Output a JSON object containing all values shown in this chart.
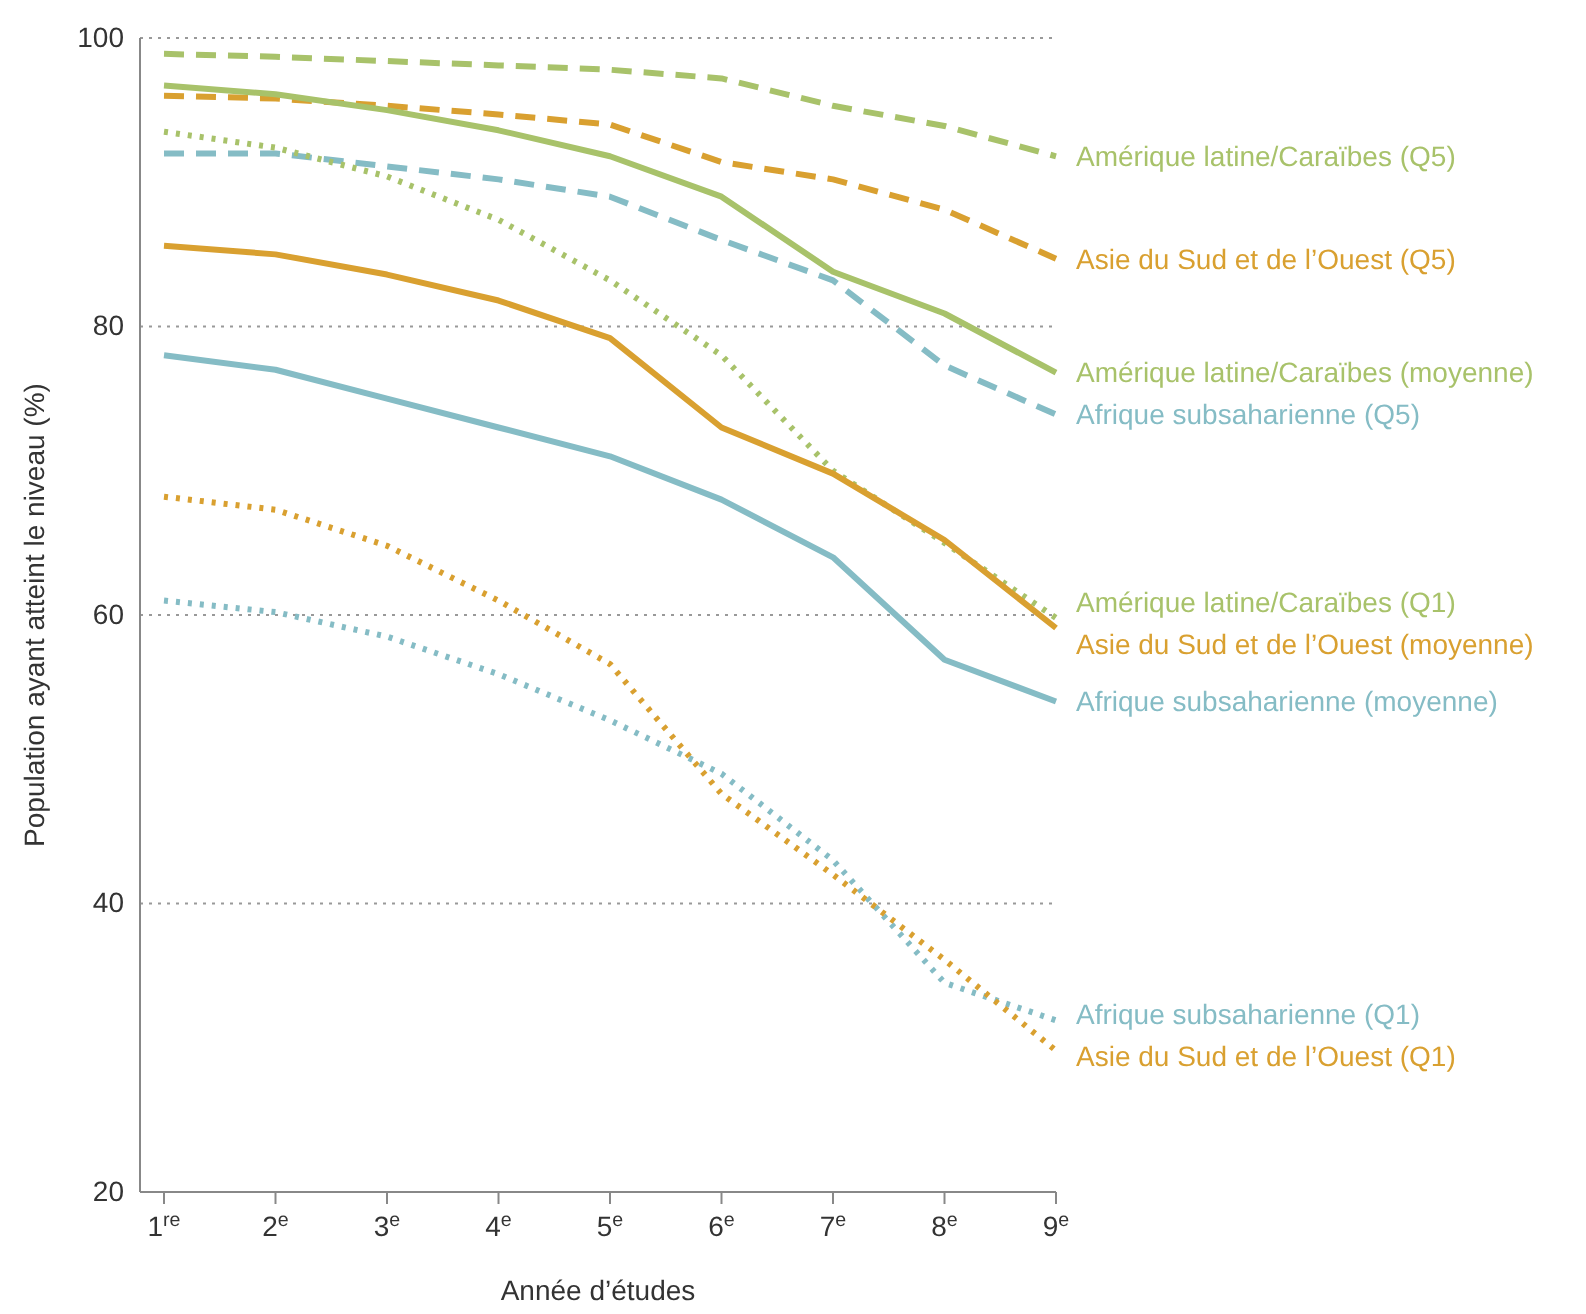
{
  "chart_data": {
    "type": "line",
    "xlabel": "Année d’études",
    "ylabel": "Population ayant atteint le niveau (%)",
    "categories": [
      "1$^{re}$",
      "2$^{e}$",
      "3$^{e}$",
      "4$^{e}$",
      "5$^{e}$",
      "6$^{e}$",
      "7$^{e}$",
      "8$^{e}$",
      "9$^{e}$"
    ],
    "ylim": [
      20,
      100
    ],
    "yticks": [
      20,
      40,
      60,
      80,
      100
    ],
    "grid": "y",
    "legend": "right",
    "series": [
      {
        "name": "Amérique latine/Caraïbes (Q5)",
        "color": "#a8c26a",
        "line_style": "dashed",
        "values": [
          98.9,
          98.7,
          98.4,
          98.1,
          97.8,
          97.2,
          95.3,
          93.9,
          91.8
        ]
      },
      {
        "name": "Asie du Sud et de l’Ouest (Q5)",
        "color": "#d9a030",
        "line_style": "dashed",
        "values": [
          96.0,
          95.8,
          95.3,
          94.7,
          94.0,
          91.4,
          90.2,
          88.1,
          84.7
        ]
      },
      {
        "name": "Amérique latine/Caraïbes (moyenne)",
        "color": "#a8c26a",
        "line_style": "solid",
        "values": [
          96.7,
          96.1,
          95.0,
          93.6,
          91.8,
          89.0,
          83.8,
          80.9,
          76.8
        ]
      },
      {
        "name": "Afrique subsaharienne (Q5)",
        "color": "#85bcc5",
        "line_style": "dashed",
        "values": [
          92.0,
          92.0,
          91.1,
          90.2,
          89.0,
          86.0,
          83.2,
          77.3,
          73.9
        ]
      },
      {
        "name": "Amérique latine/Caraïbes (Q1)",
        "color": "#a8c26a",
        "line_style": "dotted",
        "values": [
          93.5,
          92.4,
          90.4,
          87.4,
          83.2,
          78.0,
          70.0,
          65.0,
          59.8
        ]
      },
      {
        "name": "Asie du Sud et de l’Ouest (moyenne)",
        "color": "#d9a030",
        "line_style": "solid",
        "values": [
          85.6,
          85.0,
          83.6,
          81.8,
          79.2,
          73.0,
          69.8,
          65.2,
          59.1
        ]
      },
      {
        "name": "Afrique subsaharienne (moyenne)",
        "color": "#85bcc5",
        "line_style": "solid",
        "values": [
          78.0,
          77.0,
          75.0,
          73.0,
          71.0,
          68.0,
          64.0,
          56.9,
          54.0
        ]
      },
      {
        "name": "Afrique subsaharienne (Q1)",
        "color": "#85bcc5",
        "line_style": "dotted",
        "values": [
          61.0,
          60.2,
          58.5,
          55.9,
          52.7,
          49.0,
          43.0,
          34.5,
          31.9
        ]
      },
      {
        "name": "Asie du Sud et de l’Ouest (Q1)",
        "color": "#d9a030",
        "line_style": "dotted",
        "values": [
          68.2,
          67.3,
          64.8,
          61.0,
          56.6,
          47.6,
          42.0,
          36.1,
          29.8
        ]
      }
    ]
  }
}
